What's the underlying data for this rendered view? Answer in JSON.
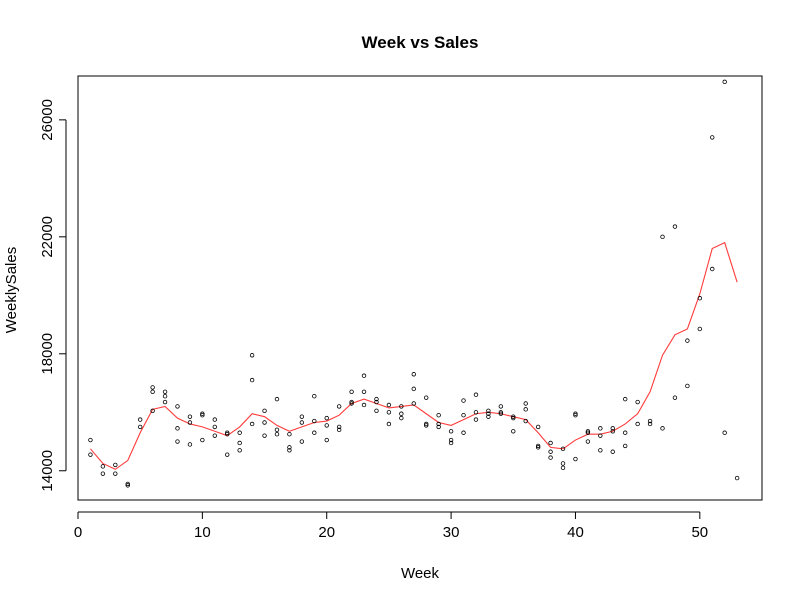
{
  "chart_data": {
    "type": "scatter",
    "title": "Week vs Sales",
    "xlabel": "Week",
    "ylabel": "WeeklySales",
    "xlim": [
      0,
      55
    ],
    "ylim": [
      13000,
      27500
    ],
    "xticks": [
      0,
      10,
      20,
      30,
      40,
      50
    ],
    "yticks": [
      14000,
      18000,
      22000,
      26000
    ],
    "grid": false,
    "legend": "none",
    "points_color": "#000000",
    "series": [
      {
        "kind": "points",
        "points": [
          [
            1,
            15050
          ],
          [
            1,
            14550
          ],
          [
            2,
            14150
          ],
          [
            2,
            13900
          ],
          [
            3,
            14200
          ],
          [
            3,
            13900
          ],
          [
            4,
            13550
          ],
          [
            4,
            13500
          ],
          [
            5,
            15750
          ],
          [
            5,
            15500
          ],
          [
            6,
            16850
          ],
          [
            6,
            16700
          ],
          [
            6,
            16050
          ],
          [
            7,
            16700
          ],
          [
            7,
            16550
          ],
          [
            7,
            16350
          ],
          [
            8,
            16200
          ],
          [
            8,
            15450
          ],
          [
            8,
            15000
          ],
          [
            9,
            15850
          ],
          [
            9,
            15650
          ],
          [
            9,
            14900
          ],
          [
            10,
            15950
          ],
          [
            10,
            15900
          ],
          [
            10,
            15050
          ],
          [
            11,
            15750
          ],
          [
            11,
            15500
          ],
          [
            11,
            15200
          ],
          [
            12,
            15300
          ],
          [
            12,
            15250
          ],
          [
            12,
            14550
          ],
          [
            13,
            15300
          ],
          [
            13,
            14950
          ],
          [
            13,
            14700
          ],
          [
            14,
            17950
          ],
          [
            14,
            17100
          ],
          [
            14,
            15600
          ],
          [
            15,
            16050
          ],
          [
            15,
            15650
          ],
          [
            15,
            15200
          ],
          [
            16,
            16450
          ],
          [
            16,
            15400
          ],
          [
            16,
            15250
          ],
          [
            17,
            15250
          ],
          [
            17,
            14800
          ],
          [
            17,
            14700
          ],
          [
            18,
            15850
          ],
          [
            18,
            15650
          ],
          [
            18,
            15000
          ],
          [
            19,
            16550
          ],
          [
            19,
            15700
          ],
          [
            19,
            15300
          ],
          [
            20,
            15800
          ],
          [
            20,
            15550
          ],
          [
            20,
            15050
          ],
          [
            21,
            16200
          ],
          [
            21,
            15500
          ],
          [
            21,
            15400
          ],
          [
            22,
            16700
          ],
          [
            22,
            16350
          ],
          [
            22,
            16300
          ],
          [
            23,
            17250
          ],
          [
            23,
            16700
          ],
          [
            23,
            16250
          ],
          [
            24,
            16450
          ],
          [
            24,
            16350
          ],
          [
            24,
            16050
          ],
          [
            25,
            16250
          ],
          [
            25,
            16000
          ],
          [
            25,
            15600
          ],
          [
            26,
            16200
          ],
          [
            26,
            15950
          ],
          [
            26,
            15800
          ],
          [
            27,
            17300
          ],
          [
            27,
            16800
          ],
          [
            27,
            16300
          ],
          [
            28,
            16500
          ],
          [
            28,
            15600
          ],
          [
            28,
            15550
          ],
          [
            29,
            15900
          ],
          [
            29,
            15600
          ],
          [
            29,
            15500
          ],
          [
            30,
            15350
          ],
          [
            30,
            15050
          ],
          [
            30,
            14950
          ],
          [
            31,
            16400
          ],
          [
            31,
            15900
          ],
          [
            31,
            15300
          ],
          [
            32,
            16600
          ],
          [
            32,
            16000
          ],
          [
            32,
            15750
          ],
          [
            33,
            16050
          ],
          [
            33,
            15950
          ],
          [
            33,
            15850
          ],
          [
            34,
            16200
          ],
          [
            34,
            16000
          ],
          [
            34,
            15950
          ],
          [
            35,
            15850
          ],
          [
            35,
            15800
          ],
          [
            35,
            15350
          ],
          [
            36,
            16300
          ],
          [
            36,
            16100
          ],
          [
            36,
            15700
          ],
          [
            37,
            15500
          ],
          [
            37,
            14850
          ],
          [
            37,
            14800
          ],
          [
            38,
            14950
          ],
          [
            38,
            14650
          ],
          [
            38,
            14450
          ],
          [
            39,
            14750
          ],
          [
            39,
            14250
          ],
          [
            39,
            14100
          ],
          [
            40,
            15950
          ],
          [
            40,
            15900
          ],
          [
            40,
            14400
          ],
          [
            41,
            15350
          ],
          [
            41,
            15300
          ],
          [
            41,
            15000
          ],
          [
            42,
            15450
          ],
          [
            42,
            15200
          ],
          [
            42,
            14700
          ],
          [
            43,
            15450
          ],
          [
            43,
            15350
          ],
          [
            43,
            14650
          ],
          [
            44,
            16450
          ],
          [
            44,
            15300
          ],
          [
            44,
            14850
          ],
          [
            45,
            16350
          ],
          [
            45,
            15600
          ],
          [
            46,
            15700
          ],
          [
            46,
            15600
          ],
          [
            47,
            22000
          ],
          [
            47,
            15450
          ],
          [
            48,
            22350
          ],
          [
            48,
            16500
          ],
          [
            49,
            18450
          ],
          [
            49,
            16900
          ],
          [
            50,
            19900
          ],
          [
            50,
            18850
          ],
          [
            51,
            25400
          ],
          [
            51,
            20900
          ],
          [
            52,
            27300
          ],
          [
            52,
            15300
          ],
          [
            53,
            13750
          ]
        ]
      },
      {
        "kind": "line",
        "color": "#ff3b3b",
        "points": [
          [
            1,
            14750
          ],
          [
            2,
            14250
          ],
          [
            3,
            14050
          ],
          [
            4,
            14350
          ],
          [
            5,
            15300
          ],
          [
            6,
            16100
          ],
          [
            7,
            16200
          ],
          [
            8,
            15800
          ],
          [
            9,
            15600
          ],
          [
            10,
            15500
          ],
          [
            11,
            15350
          ],
          [
            12,
            15200
          ],
          [
            13,
            15500
          ],
          [
            14,
            15950
          ],
          [
            15,
            15850
          ],
          [
            16,
            15550
          ],
          [
            17,
            15350
          ],
          [
            18,
            15500
          ],
          [
            19,
            15650
          ],
          [
            20,
            15700
          ],
          [
            21,
            15900
          ],
          [
            22,
            16300
          ],
          [
            23,
            16450
          ],
          [
            24,
            16300
          ],
          [
            25,
            16150
          ],
          [
            26,
            16200
          ],
          [
            27,
            16250
          ],
          [
            28,
            15950
          ],
          [
            29,
            15650
          ],
          [
            30,
            15550
          ],
          [
            31,
            15750
          ],
          [
            32,
            15950
          ],
          [
            33,
            16000
          ],
          [
            34,
            15950
          ],
          [
            35,
            15850
          ],
          [
            36,
            15750
          ],
          [
            37,
            15300
          ],
          [
            38,
            14800
          ],
          [
            39,
            14750
          ],
          [
            40,
            15050
          ],
          [
            41,
            15250
          ],
          [
            42,
            15250
          ],
          [
            43,
            15350
          ],
          [
            44,
            15600
          ],
          [
            45,
            15950
          ],
          [
            46,
            16700
          ],
          [
            47,
            17950
          ],
          [
            48,
            18650
          ],
          [
            49,
            18850
          ],
          [
            50,
            20050
          ],
          [
            51,
            21600
          ],
          [
            52,
            21800
          ],
          [
            53,
            20450
          ]
        ]
      }
    ]
  }
}
